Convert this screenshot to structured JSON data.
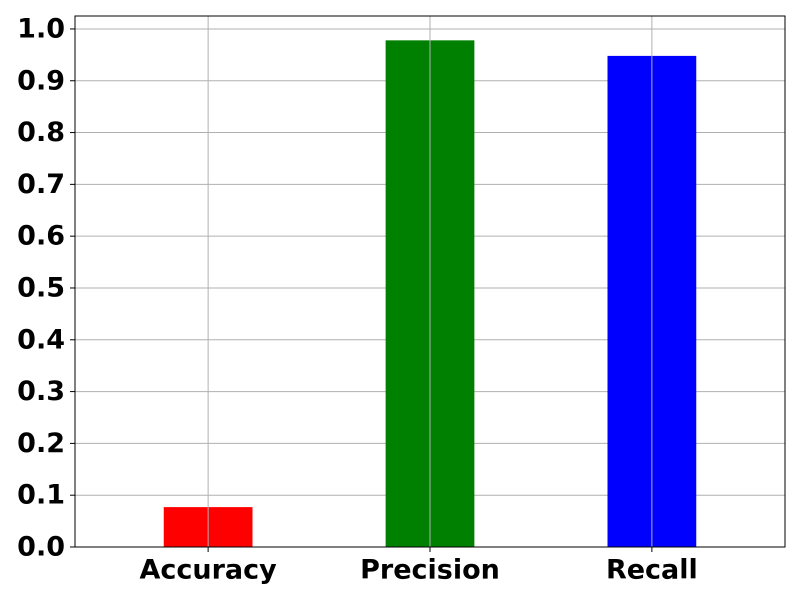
{
  "chart_data": {
    "type": "bar",
    "categories": [
      "Accuracy",
      "Precision",
      "Recall"
    ],
    "values": [
      0.077,
      0.978,
      0.948
    ],
    "colors": [
      "#ff0000",
      "#008000",
      "#0000ff"
    ],
    "ylim": [
      0,
      1.025
    ],
    "yticks": [
      0.0,
      0.1,
      0.2,
      0.3,
      0.4,
      0.5,
      0.6,
      0.7,
      0.8,
      0.9,
      1.0
    ],
    "ytick_labels": [
      "0.0",
      "0.1",
      "0.2",
      "0.3",
      "0.4",
      "0.5",
      "0.6",
      "0.7",
      "0.8",
      "0.9",
      "1.0"
    ],
    "grid": true
  }
}
